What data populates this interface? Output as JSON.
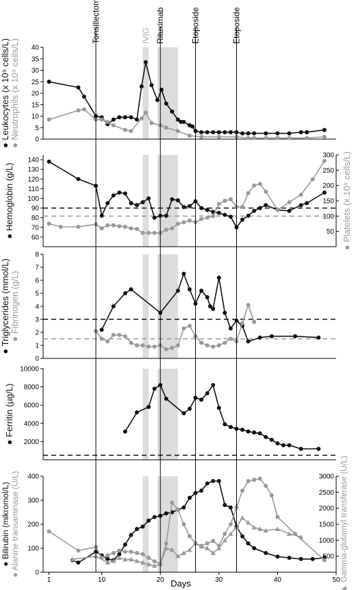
{
  "colors": {
    "black": "#111111",
    "gray": "#9a9a9a",
    "shade": "#dcdcdc",
    "ivig_text": "#aaaaaa"
  },
  "chart_data": {
    "type": "line",
    "xlabel": "Days",
    "x_ticks": [
      1,
      10,
      20,
      30,
      40,
      50
    ],
    "xlim": [
      0,
      50
    ],
    "events": [
      {
        "label": "Tonsillectomy",
        "day": 9
      },
      {
        "label": "IVIG",
        "day": 17.5,
        "shaded": [
          17,
          18
        ],
        "style": "gray"
      },
      {
        "label": "Rituximab",
        "day": 20,
        "shaded": [
          19.5,
          23
        ]
      },
      {
        "label": "Etoposide",
        "day": 26
      },
      {
        "label": "Etoposide",
        "day": 33
      }
    ],
    "panels": [
      {
        "id": "leukocytes",
        "left_label": "Leukocytes (x 10⁹ cells/L)",
        "left_label2": "Neutrophils (x 10⁹ cells/L)",
        "ylim": [
          0,
          40
        ],
        "yticks": [
          0,
          5,
          10,
          15,
          20,
          25,
          30,
          35,
          40
        ],
        "series": [
          {
            "name": "Leukocytes",
            "color": "black",
            "axis": "left",
            "marker": "circle",
            "x": [
              1,
              6,
              7,
              9,
              10,
              11,
              12,
              13,
              14,
              15,
              16,
              16.8,
              17.5,
              18.5,
              19.5,
              20.2,
              21,
              22,
              23,
              23.5,
              24,
              25,
              25.5,
              26,
              27,
              28,
              29,
              30,
              31,
              32,
              33,
              34,
              35,
              36,
              38,
              40,
              42,
              44,
              45,
              48
            ],
            "y": [
              25,
              22.5,
              18.5,
              10,
              9.5,
              6.5,
              8.5,
              9.5,
              9.5,
              9.5,
              8.5,
              23,
              33.5,
              23.5,
              17,
              21.5,
              15.5,
              12,
              8.5,
              7.5,
              7.5,
              6,
              5.5,
              3.5,
              3,
              3,
              3,
              3,
              3,
              3,
              3,
              2.5,
              2.5,
              2.5,
              2.5,
              2.5,
              2.5,
              3,
              3,
              4
            ]
          },
          {
            "name": "Neutrophils",
            "color": "gray",
            "axis": "left",
            "marker": "circle",
            "x": [
              1,
              6,
              7,
              9,
              10,
              11,
              12,
              14,
              15,
              16.8,
              17.5,
              18.5,
              20,
              21,
              23,
              25,
              27,
              30,
              33,
              35,
              36,
              38,
              40,
              42,
              45,
              48
            ],
            "y": [
              8.5,
              12.5,
              13,
              8.5,
              8.5,
              7.5,
              6,
              4,
              3.5,
              9,
              11.5,
              7,
              6,
              5,
              3.5,
              1.5,
              1,
              1,
              1,
              0.5,
              0.5,
              0.5,
              0.5,
              0.5,
              0.5,
              1
            ]
          }
        ]
      },
      {
        "id": "hemoglobin",
        "left_label": "Hemoglobin (g/L)",
        "right_label": "Platelets (x 10⁹ cells/L)",
        "ylim": [
          50,
          145
        ],
        "yticks": [
          60,
          70,
          80,
          90,
          100,
          110,
          120,
          130,
          140
        ],
        "right_ylim": [
          0,
          300
        ],
        "right_yticks": [
          50,
          100,
          150,
          200,
          250,
          300
        ],
        "ref_lines": [
          {
            "axis": "left",
            "y": 90,
            "color": "black"
          },
          {
            "axis": "right",
            "y": 100,
            "color": "gray"
          }
        ],
        "series": [
          {
            "name": "Hemoglobin",
            "color": "black",
            "axis": "left",
            "marker": "circle",
            "x": [
              1,
              6,
              9,
              10,
              11,
              12,
              13,
              14,
              15,
              16,
              17,
              18,
              19,
              20,
              21,
              22,
              23,
              24,
              25,
              26,
              27,
              28,
              29,
              30,
              31,
              32,
              33,
              34,
              35,
              36,
              37,
              38,
              40,
              42,
              44,
              45,
              48
            ],
            "y": [
              138,
              120,
              113,
              82,
              95,
              103,
              106,
              105,
              95,
              93,
              96,
              100,
              80,
              82,
              82,
              99,
              98,
              91,
              92,
              97,
              90,
              88,
              86,
              85,
              83,
              81,
              70,
              78,
              82,
              87,
              90,
              93,
              88,
              87,
              93,
              95,
              106
            ]
          },
          {
            "name": "Platelets",
            "color": "gray",
            "axis": "right",
            "marker": "circle",
            "x": [
              1,
              3,
              6,
              9,
              10,
              11,
              12,
              13,
              14,
              15,
              16,
              17,
              18,
              19,
              20,
              21,
              22,
              23,
              24,
              25,
              26,
              27,
              28,
              29,
              30,
              31,
              32,
              33,
              34,
              35,
              36,
              37,
              38,
              40,
              42,
              44,
              46,
              48
            ],
            "y": [
              75,
              65,
              65,
              73,
              60,
              70,
              70,
              67,
              65,
              60,
              58,
              45,
              45,
              45,
              45,
              55,
              60,
              75,
              80,
              85,
              80,
              90,
              95,
              100,
              140,
              150,
              155,
              130,
              130,
              175,
              200,
              205,
              180,
              120,
              145,
              170,
              220,
              280
            ]
          }
        ]
      },
      {
        "id": "triglycerides",
        "left_label": "Triglycerides (mmol/L)",
        "left_label2": "Fibrinogen (g/L)",
        "ylim": [
          0,
          8
        ],
        "yticks": [
          0,
          1,
          2,
          3,
          4,
          5,
          6,
          7,
          8
        ],
        "ref_lines": [
          {
            "axis": "left",
            "y": 3,
            "color": "black"
          },
          {
            "axis": "left",
            "y": 1.5,
            "color": "gray"
          }
        ],
        "series": [
          {
            "name": "Triglycerides",
            "color": "black",
            "axis": "left",
            "marker": "circle",
            "x": [
              10,
              12,
              14,
              15,
              20,
              23,
              24,
              25,
              26,
              27,
              28,
              28.5,
              29,
              30,
              31,
              32,
              33,
              34,
              35,
              37,
              39,
              43,
              47
            ],
            "y": [
              2.2,
              4,
              5,
              5.3,
              3.5,
              5.2,
              6.5,
              5.3,
              4.2,
              5.2,
              4.7,
              4,
              3.8,
              6.2,
              3.5,
              2.3,
              2.9,
              2.5,
              1.3,
              1.6,
              1.7,
              1.7,
              1.6
            ]
          },
          {
            "name": "Fibrinogen",
            "color": "gray",
            "axis": "left",
            "marker": "circle",
            "x": [
              9,
              10,
              11,
              12,
              13,
              14,
              15,
              16,
              17,
              18,
              19,
              20,
              21,
              22,
              23,
              24,
              25,
              26,
              27,
              28,
              29,
              30,
              31,
              32,
              33,
              34,
              35,
              36
            ],
            "y": [
              2.1,
              1.5,
              1.3,
              1.8,
              1.8,
              1.7,
              1.2,
              1,
              1,
              0.9,
              0.9,
              1,
              0.7,
              0.8,
              1,
              2.3,
              2.5,
              1.7,
              1.2,
              1,
              0.9,
              1,
              1.2,
              1.5,
              1.3,
              2.7,
              4.1,
              2.8
            ]
          }
        ]
      },
      {
        "id": "ferritin",
        "left_label": "Ferritin (µg/L)",
        "ylim": [
          0,
          10000
        ],
        "yticks": [
          2000,
          4000,
          6000,
          8000,
          10000
        ],
        "ref_lines": [
          {
            "axis": "left",
            "y": 500,
            "color": "black"
          }
        ],
        "series": [
          {
            "name": "Ferritin",
            "color": "black",
            "axis": "left",
            "marker": "circle",
            "x": [
              14,
              16,
              18,
              19,
              20,
              21,
              24,
              25,
              26,
              27,
              28,
              29,
              30,
              31,
              32,
              33,
              34,
              35,
              36,
              37,
              38,
              39,
              40,
              41,
              42,
              44,
              47
            ],
            "y": [
              3100,
              5200,
              5800,
              7800,
              8200,
              6700,
              5100,
              5600,
              6800,
              6600,
              7300,
              8200,
              5700,
              3900,
              3600,
              3400,
              3300,
              3100,
              3000,
              2900,
              2500,
              2200,
              1800,
              1600,
              1600,
              1200,
              1200
            ]
          }
        ]
      },
      {
        "id": "bilirubin",
        "left_label": "Bilirubin (mikromol/L)",
        "left_label2": "Alanine transaminase (U/L)",
        "right_label": "Gamma-glutamyl transferase (U/L)",
        "ylim": [
          0,
          400
        ],
        "yticks": [
          0,
          100,
          200,
          300,
          400
        ],
        "right_ylim": [
          0,
          3000
        ],
        "right_yticks": [
          500,
          1000,
          1500,
          2000,
          2500,
          3000
        ],
        "series": [
          {
            "name": "Bilirubin",
            "color": "black",
            "axis": "left",
            "marker": "circle",
            "x": [
              5,
              6,
              9,
              10,
              11,
              12,
              13,
              14,
              15,
              16,
              17,
              18,
              19,
              20,
              21,
              22,
              23,
              24,
              25,
              26,
              27,
              28,
              29,
              30,
              31,
              32,
              33,
              34,
              35,
              36,
              38,
              40,
              42,
              44,
              46,
              48
            ],
            "y": [
              50,
              40,
              85,
              70,
              55,
              50,
              75,
              115,
              155,
              180,
              190,
              215,
              230,
              235,
              245,
              250,
              260,
              270,
              310,
              330,
              340,
              370,
              380,
              380,
              280,
              270,
              190,
              150,
              120,
              100,
              80,
              65,
              60,
              55,
              55,
              60
            ]
          },
          {
            "name": "Alanine transaminase",
            "color": "gray",
            "axis": "left",
            "marker": "circle",
            "x": [
              1,
              6,
              9,
              10,
              11,
              12,
              13,
              14,
              15,
              16,
              17,
              18,
              19,
              20,
              21,
              22,
              23,
              24,
              25,
              26,
              27,
              28,
              29,
              30,
              31,
              32,
              33,
              34,
              35,
              36,
              37,
              38,
              39,
              40,
              43,
              48
            ],
            "y": [
              170,
              90,
              105,
              60,
              70,
              80,
              90,
              85,
              85,
              80,
              75,
              60,
              45,
              35,
              120,
              290,
              260,
              200,
              150,
              120,
              110,
              120,
              130,
              110,
              160,
              200,
              270,
              340,
              380,
              385,
              390,
              360,
              320,
              230,
              160,
              50
            ]
          },
          {
            "name": "Gamma-glutamyl transferase",
            "color": "gray",
            "axis": "right",
            "marker": "triangle",
            "x": [
              5,
              9,
              11,
              12,
              13,
              14,
              15,
              16,
              17,
              18,
              19,
              20,
              21,
              22,
              23,
              24,
              25,
              26,
              27,
              28,
              29,
              30,
              31,
              32,
              33,
              34,
              35,
              36,
              37,
              38,
              40,
              42,
              44
            ],
            "y": [
              400,
              500,
              300,
              350,
              450,
              400,
              400,
              350,
              300,
              250,
              200,
              250,
              750,
              700,
              500,
              600,
              700,
              900,
              800,
              750,
              600,
              750,
              1000,
              1200,
              1400,
              1700,
              1550,
              1400,
              1350,
              1300,
              1350,
              1200,
              1100
            ]
          }
        ]
      }
    ]
  }
}
